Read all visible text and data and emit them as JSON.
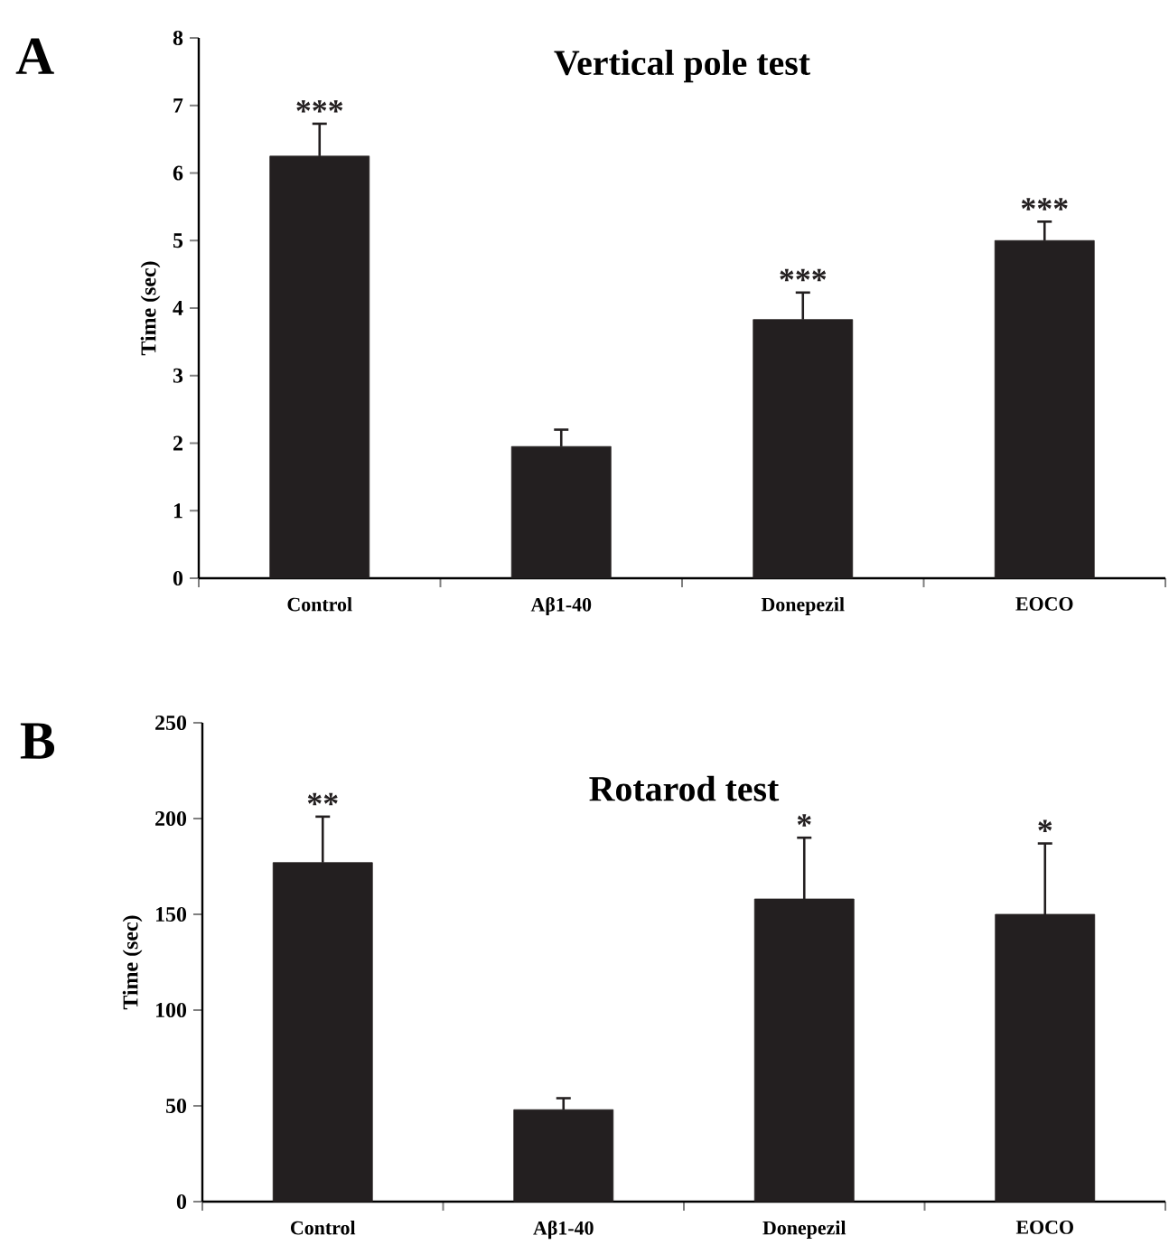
{
  "chart_data": [
    {
      "type": "bar",
      "title": "Vertical pole test",
      "ylabel": "Time (sec)",
      "categories": [
        "Control",
        "Aβ1-40",
        "Donepezil",
        "EOCO"
      ],
      "values": [
        6.25,
        1.95,
        3.83,
        5.0
      ],
      "errors": [
        0.48,
        0.25,
        0.4,
        0.28
      ],
      "color": "#231f20",
      "ylim": [
        0,
        8
      ],
      "yticks": [
        0,
        1,
        2,
        3,
        4,
        5,
        6,
        7,
        8
      ],
      "annotations": [
        "A",
        {
          "text": "***",
          "x": "Control",
          "y": 6.73
        },
        {
          "text": "***",
          "x": "Donepezil",
          "y": 4.23
        },
        {
          "text": "***",
          "x": "EOCO",
          "y": 5.28
        }
      ]
    },
    {
      "type": "bar",
      "title": "Rotarod test",
      "ylabel": "Time (sec)",
      "categories": [
        "Control",
        "Aβ1-40",
        "Donepezil",
        "EOCO"
      ],
      "values": [
        177,
        48,
        158,
        150
      ],
      "errors": [
        24,
        6,
        32,
        37
      ],
      "color": "#231f20",
      "ylim": [
        0,
        250
      ],
      "yticks": [
        0,
        50,
        100,
        150,
        200,
        250
      ],
      "annotations": [
        "B",
        {
          "text": "**",
          "x": "Control",
          "y": 201
        },
        {
          "text": "*",
          "x": "Donepezil",
          "y": 190
        },
        {
          "text": "*",
          "x": "EOCO",
          "y": 187
        }
      ]
    }
  ]
}
